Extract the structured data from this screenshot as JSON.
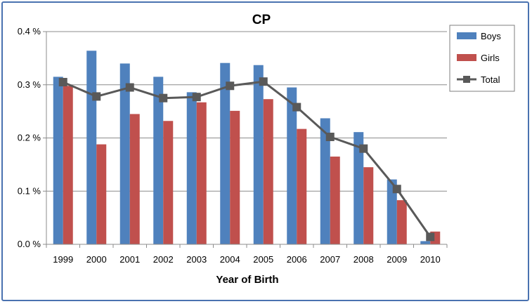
{
  "chart_data": {
    "type": "bar",
    "title": "CP",
    "xlabel": "Year of Birth",
    "ylabel": "",
    "categories": [
      "1999",
      "2000",
      "2001",
      "2002",
      "2003",
      "2004",
      "2005",
      "2006",
      "2007",
      "2008",
      "2009",
      "2010"
    ],
    "series": [
      {
        "name": "Boys",
        "kind": "bar",
        "color": "#4f81bd",
        "values": [
          0.315,
          0.364,
          0.34,
          0.315,
          0.286,
          0.341,
          0.337,
          0.295,
          0.237,
          0.211,
          0.122,
          0.006
        ]
      },
      {
        "name": "Girls",
        "kind": "bar",
        "color": "#c0504d",
        "values": [
          0.298,
          0.188,
          0.245,
          0.232,
          0.267,
          0.251,
          0.273,
          0.217,
          0.165,
          0.145,
          0.083,
          0.024
        ]
      },
      {
        "name": "Total",
        "kind": "line",
        "color": "#595959",
        "values": [
          0.305,
          0.278,
          0.295,
          0.275,
          0.277,
          0.298,
          0.306,
          0.258,
          0.202,
          0.18,
          0.104,
          0.014
        ]
      }
    ],
    "ylim": [
      0,
      0.4
    ],
    "yticks": [
      0,
      0.1,
      0.2,
      0.3,
      0.4
    ],
    "ytick_labels": [
      "0.0 %",
      "0.1 %",
      "0.2 %",
      "0.3 %",
      "0.4 %"
    ],
    "grid": true,
    "legend_position": "right"
  }
}
